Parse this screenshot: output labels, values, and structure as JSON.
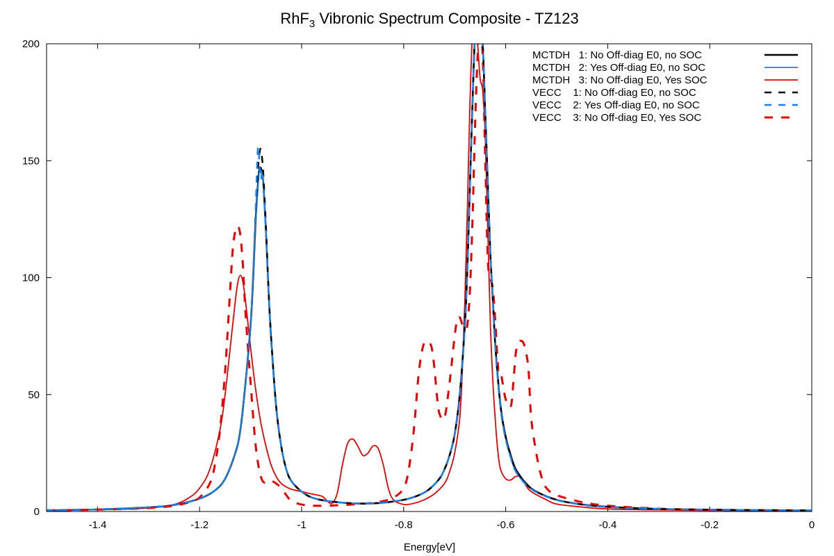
{
  "chart_data": {
    "type": "line",
    "title": "RhF",
    "title_sub": "3",
    "title_rest": " Vibronic Spectrum Composite - TZ123",
    "xlabel": "Energy[eV]",
    "ylabel": "",
    "xlim": [
      -1.5,
      0
    ],
    "ylim": [
      0,
      200
    ],
    "x_ticks": [
      -1.4,
      -1.2,
      -1,
      -0.8,
      -0.6,
      -0.4,
      -0.2,
      0
    ],
    "x_tick_labels": [
      "-1.4",
      "-1.2",
      "-1",
      "-0.8",
      "-0.6",
      "-0.4",
      "-0.2",
      "0"
    ],
    "y_ticks": [
      0,
      50,
      100,
      150,
      200
    ],
    "y_tick_labels": [
      "0",
      "50",
      "100",
      "150",
      "200"
    ],
    "grid": false,
    "legend_position": "top-right",
    "series": [
      {
        "name": "MCTDH   1: No Off-diag E0, no SOC",
        "color": "#000000",
        "style": "solid",
        "x": [
          -1.5,
          -1.4,
          -1.3,
          -1.25,
          -1.2,
          -1.17,
          -1.15,
          -1.13,
          -1.12,
          -1.11,
          -1.1,
          -1.095,
          -1.09,
          -1.085,
          -1.083,
          -1.08,
          -1.077,
          -1.075,
          -1.07,
          -1.065,
          -1.06,
          -1.05,
          -1.04,
          -1.03,
          -1.02,
          -1.0,
          -0.98,
          -0.95,
          -0.9,
          -0.85,
          -0.8,
          -0.77,
          -0.75,
          -0.73,
          -0.72,
          -0.71,
          -0.7,
          -0.69,
          -0.68,
          -0.675,
          -0.67,
          -0.665,
          -0.66,
          -0.655,
          -0.65,
          -0.645,
          -0.64,
          -0.635,
          -0.63,
          -0.625,
          -0.62,
          -0.61,
          -0.6,
          -0.59,
          -0.58,
          -0.56,
          -0.54,
          -0.5,
          -0.45,
          -0.4,
          -0.3,
          -0.2,
          -0.1,
          0
        ],
        "y": [
          0.5,
          0.9,
          1.8,
          2.8,
          5.5,
          9,
          14,
          25,
          35,
          55,
          80,
          100,
          125,
          142,
          146,
          147,
          144,
          140,
          120,
          95,
          75,
          45,
          28,
          18,
          13,
          8.5,
          6,
          4.5,
          3.5,
          3.6,
          5,
          7,
          9.5,
          14,
          18,
          24,
          33,
          50,
          80,
          105,
          140,
          175,
          205,
          215,
          212,
          200,
          170,
          140,
          110,
          90,
          70,
          45,
          32,
          24,
          18,
          12,
          8.5,
          5,
          3,
          2,
          1.1,
          0.8,
          0.6,
          0.5
        ]
      },
      {
        "name": "MCTDH   2: Yes Off-diag E0, no SOC",
        "color": "#1a7fe6",
        "style": "solid",
        "x": [
          -1.5,
          -1.4,
          -1.3,
          -1.25,
          -1.2,
          -1.17,
          -1.15,
          -1.13,
          -1.12,
          -1.11,
          -1.1,
          -1.095,
          -1.09,
          -1.085,
          -1.083,
          -1.08,
          -1.077,
          -1.075,
          -1.07,
          -1.065,
          -1.06,
          -1.05,
          -1.04,
          -1.03,
          -1.02,
          -1.0,
          -0.98,
          -0.95,
          -0.9,
          -0.85,
          -0.8,
          -0.77,
          -0.75,
          -0.73,
          -0.72,
          -0.71,
          -0.7,
          -0.69,
          -0.68,
          -0.675,
          -0.67,
          -0.665,
          -0.66,
          -0.655,
          -0.65,
          -0.645,
          -0.64,
          -0.635,
          -0.63,
          -0.625,
          -0.62,
          -0.61,
          -0.6,
          -0.59,
          -0.58,
          -0.56,
          -0.54,
          -0.5,
          -0.45,
          -0.4,
          -0.3,
          -0.2,
          -0.1,
          0
        ],
        "y": [
          0.5,
          0.9,
          1.8,
          2.8,
          5.5,
          9,
          14,
          25,
          35,
          55,
          80,
          100,
          124,
          141,
          145,
          146,
          143,
          139,
          119,
          94,
          74,
          45,
          28,
          18,
          13,
          8.5,
          6,
          4.5,
          3.5,
          3.6,
          5,
          7,
          9.5,
          14,
          18,
          24,
          33,
          49,
          79,
          104,
          139,
          174,
          204,
          214,
          211,
          199,
          169,
          139,
          109,
          89,
          69,
          44,
          31,
          23,
          17,
          11.5,
          8.3,
          4.9,
          2.9,
          1.9,
          1.1,
          0.8,
          0.6,
          0.5
        ]
      },
      {
        "name": "MCTDH   3: No Off-diag E0, Yes SOC",
        "color": "#e60000",
        "style": "solid",
        "x": [
          -1.5,
          -1.4,
          -1.3,
          -1.25,
          -1.22,
          -1.2,
          -1.18,
          -1.16,
          -1.15,
          -1.14,
          -1.13,
          -1.125,
          -1.12,
          -1.115,
          -1.11,
          -1.1,
          -1.09,
          -1.08,
          -1.07,
          -1.06,
          -1.05,
          -1.04,
          -1.03,
          -1.02,
          -1.0,
          -0.98,
          -0.96,
          -0.95,
          -0.94,
          -0.93,
          -0.92,
          -0.91,
          -0.9,
          -0.89,
          -0.88,
          -0.87,
          -0.86,
          -0.85,
          -0.84,
          -0.83,
          -0.82,
          -0.8,
          -0.78,
          -0.76,
          -0.74,
          -0.72,
          -0.71,
          -0.7,
          -0.69,
          -0.685,
          -0.68,
          -0.675,
          -0.67,
          -0.665,
          -0.66,
          -0.655,
          -0.65,
          -0.645,
          -0.64,
          -0.635,
          -0.63,
          -0.625,
          -0.62,
          -0.615,
          -0.61,
          -0.6,
          -0.59,
          -0.58,
          -0.57,
          -0.56,
          -0.55,
          -0.52,
          -0.5,
          -0.45,
          -0.4,
          -0.3,
          -0.2,
          -0.1,
          0
        ],
        "y": [
          0.5,
          0.8,
          1.5,
          3,
          6,
          10,
          18,
          35,
          50,
          70,
          90,
          98,
          101,
          98,
          90,
          70,
          52,
          38,
          28,
          20,
          15,
          12,
          10.5,
          9.5,
          8.5,
          7.5,
          6.5,
          4.5,
          3.5,
          8,
          20,
          29,
          31,
          28,
          24,
          25,
          28,
          27,
          20,
          10,
          5,
          3,
          3.5,
          5,
          7.5,
          12,
          17,
          25,
          40,
          60,
          90,
          130,
          175,
          205,
          215,
          200,
          185,
          180,
          160,
          120,
          80,
          55,
          38,
          25,
          18,
          14,
          13.5,
          15,
          14.5,
          11,
          8.5,
          5,
          3.2,
          1.9,
          1.1,
          0.7,
          0.5,
          0.4,
          0.3
        ]
      },
      {
        "name": "VECC    1: No Off-diag E0, no SOC",
        "color": "#000000",
        "style": "dashed",
        "x": [
          -1.5,
          -1.4,
          -1.3,
          -1.25,
          -1.2,
          -1.17,
          -1.15,
          -1.13,
          -1.12,
          -1.11,
          -1.1,
          -1.095,
          -1.09,
          -1.085,
          -1.082,
          -1.08,
          -1.078,
          -1.075,
          -1.07,
          -1.065,
          -1.06,
          -1.05,
          -1.04,
          -1.03,
          -1.02,
          -1.0,
          -0.98,
          -0.95,
          -0.9,
          -0.85,
          -0.8,
          -0.77,
          -0.75,
          -0.73,
          -0.72,
          -0.71,
          -0.7,
          -0.69,
          -0.68,
          -0.675,
          -0.67,
          -0.665,
          -0.66,
          -0.655,
          -0.65,
          -0.645,
          -0.64,
          -0.635,
          -0.63,
          -0.625,
          -0.62,
          -0.61,
          -0.6,
          -0.59,
          -0.58,
          -0.56,
          -0.54,
          -0.5,
          -0.45,
          -0.4,
          -0.3,
          -0.2,
          -0.1,
          0
        ],
        "y": [
          0.5,
          0.9,
          1.8,
          2.8,
          5.5,
          9,
          14,
          25,
          35,
          55,
          80,
          100,
          128,
          148,
          154,
          155,
          152,
          144,
          122,
          96,
          75,
          45,
          28,
          18,
          13,
          8.5,
          6,
          4.5,
          3.5,
          3.6,
          5,
          7,
          9.5,
          14,
          18,
          24,
          33,
          50,
          80,
          105,
          140,
          175,
          205,
          215,
          212,
          200,
          170,
          140,
          110,
          90,
          70,
          45,
          32,
          24,
          18,
          12,
          8.5,
          5,
          3,
          2,
          1.1,
          0.8,
          0.6,
          0.5
        ]
      },
      {
        "name": "VECC    2: Yes Off-diag E0, no SOC",
        "color": "#1a7fe6",
        "style": "dashed",
        "x": [
          -1.5,
          -1.4,
          -1.3,
          -1.25,
          -1.2,
          -1.17,
          -1.15,
          -1.13,
          -1.12,
          -1.11,
          -1.1,
          -1.095,
          -1.09,
          -1.087,
          -1.085,
          -1.083,
          -1.08,
          -1.077,
          -1.075,
          -1.07,
          -1.065,
          -1.06,
          -1.05,
          -1.04,
          -1.03,
          -1.02,
          -1.0,
          -0.98,
          -0.95,
          -0.9,
          -0.85,
          -0.8,
          -0.77,
          -0.75,
          -0.73,
          -0.72,
          -0.71,
          -0.7,
          -0.69,
          -0.68,
          -0.675,
          -0.67,
          -0.665,
          -0.66,
          -0.655,
          -0.65,
          -0.645,
          -0.64,
          -0.635,
          -0.63,
          -0.625,
          -0.62,
          -0.61,
          -0.6,
          -0.59,
          -0.58,
          -0.56,
          -0.54,
          -0.5,
          -0.45,
          -0.4,
          -0.3,
          -0.2,
          -0.1,
          0
        ],
        "y": [
          0.5,
          0.9,
          1.8,
          2.8,
          5.5,
          9,
          14,
          25,
          35,
          55,
          80,
          102,
          130,
          150,
          156,
          150,
          142,
          146,
          140,
          120,
          95,
          74,
          45,
          28,
          18,
          13,
          8.5,
          6,
          4.5,
          3.5,
          3.6,
          5,
          7,
          9.5,
          14,
          18,
          24,
          33,
          49,
          79,
          104,
          139,
          174,
          204,
          214,
          211,
          199,
          169,
          139,
          109,
          89,
          69,
          44,
          31,
          23,
          17,
          11.5,
          8.3,
          4.9,
          2.9,
          1.9,
          1.1,
          0.8,
          0.6,
          0.5
        ]
      },
      {
        "name": "VECC    3: No Off-diag E0, Yes SOC",
        "color": "#e60000",
        "style": "dashed",
        "x": [
          -1.5,
          -1.4,
          -1.3,
          -1.25,
          -1.22,
          -1.2,
          -1.18,
          -1.17,
          -1.16,
          -1.15,
          -1.14,
          -1.135,
          -1.13,
          -1.125,
          -1.12,
          -1.115,
          -1.11,
          -1.1,
          -1.09,
          -1.08,
          -1.07,
          -1.06,
          -1.05,
          -1.04,
          -1.03,
          -1.02,
          -1.0,
          -0.98,
          -0.95,
          -0.9,
          -0.85,
          -0.82,
          -0.8,
          -0.79,
          -0.78,
          -0.77,
          -0.76,
          -0.75,
          -0.745,
          -0.74,
          -0.735,
          -0.73,
          -0.72,
          -0.71,
          -0.7,
          -0.695,
          -0.69,
          -0.685,
          -0.68,
          -0.675,
          -0.67,
          -0.665,
          -0.66,
          -0.655,
          -0.65,
          -0.645,
          -0.64,
          -0.635,
          -0.63,
          -0.625,
          -0.62,
          -0.615,
          -0.61,
          -0.6,
          -0.59,
          -0.585,
          -0.58,
          -0.575,
          -0.57,
          -0.565,
          -0.56,
          -0.555,
          -0.55,
          -0.54,
          -0.53,
          -0.52,
          -0.5,
          -0.45,
          -0.4,
          -0.3,
          -0.2,
          -0.1,
          0
        ],
        "y": [
          0.5,
          0.8,
          1.5,
          2.5,
          4,
          6,
          12,
          20,
          35,
          60,
          95,
          112,
          120,
          122,
          118,
          105,
          85,
          55,
          28,
          15,
          12,
          13,
          12,
          10,
          7,
          4.5,
          3,
          2.5,
          2.5,
          3,
          4,
          6,
          10,
          18,
          35,
          60,
          72,
          72,
          70,
          62,
          50,
          42,
          40,
          55,
          75,
          82,
          83,
          80,
          78,
          80,
          95,
          125,
          165,
          195,
          210,
          195,
          150,
          108,
          100,
          95,
          80,
          62,
          60,
          48,
          45,
          55,
          68,
          72,
          73,
          72,
          68,
          60,
          40,
          25,
          15,
          10,
          7,
          4,
          2.5,
          1.2,
          0.7,
          0.5,
          0.4
        ]
      }
    ]
  }
}
